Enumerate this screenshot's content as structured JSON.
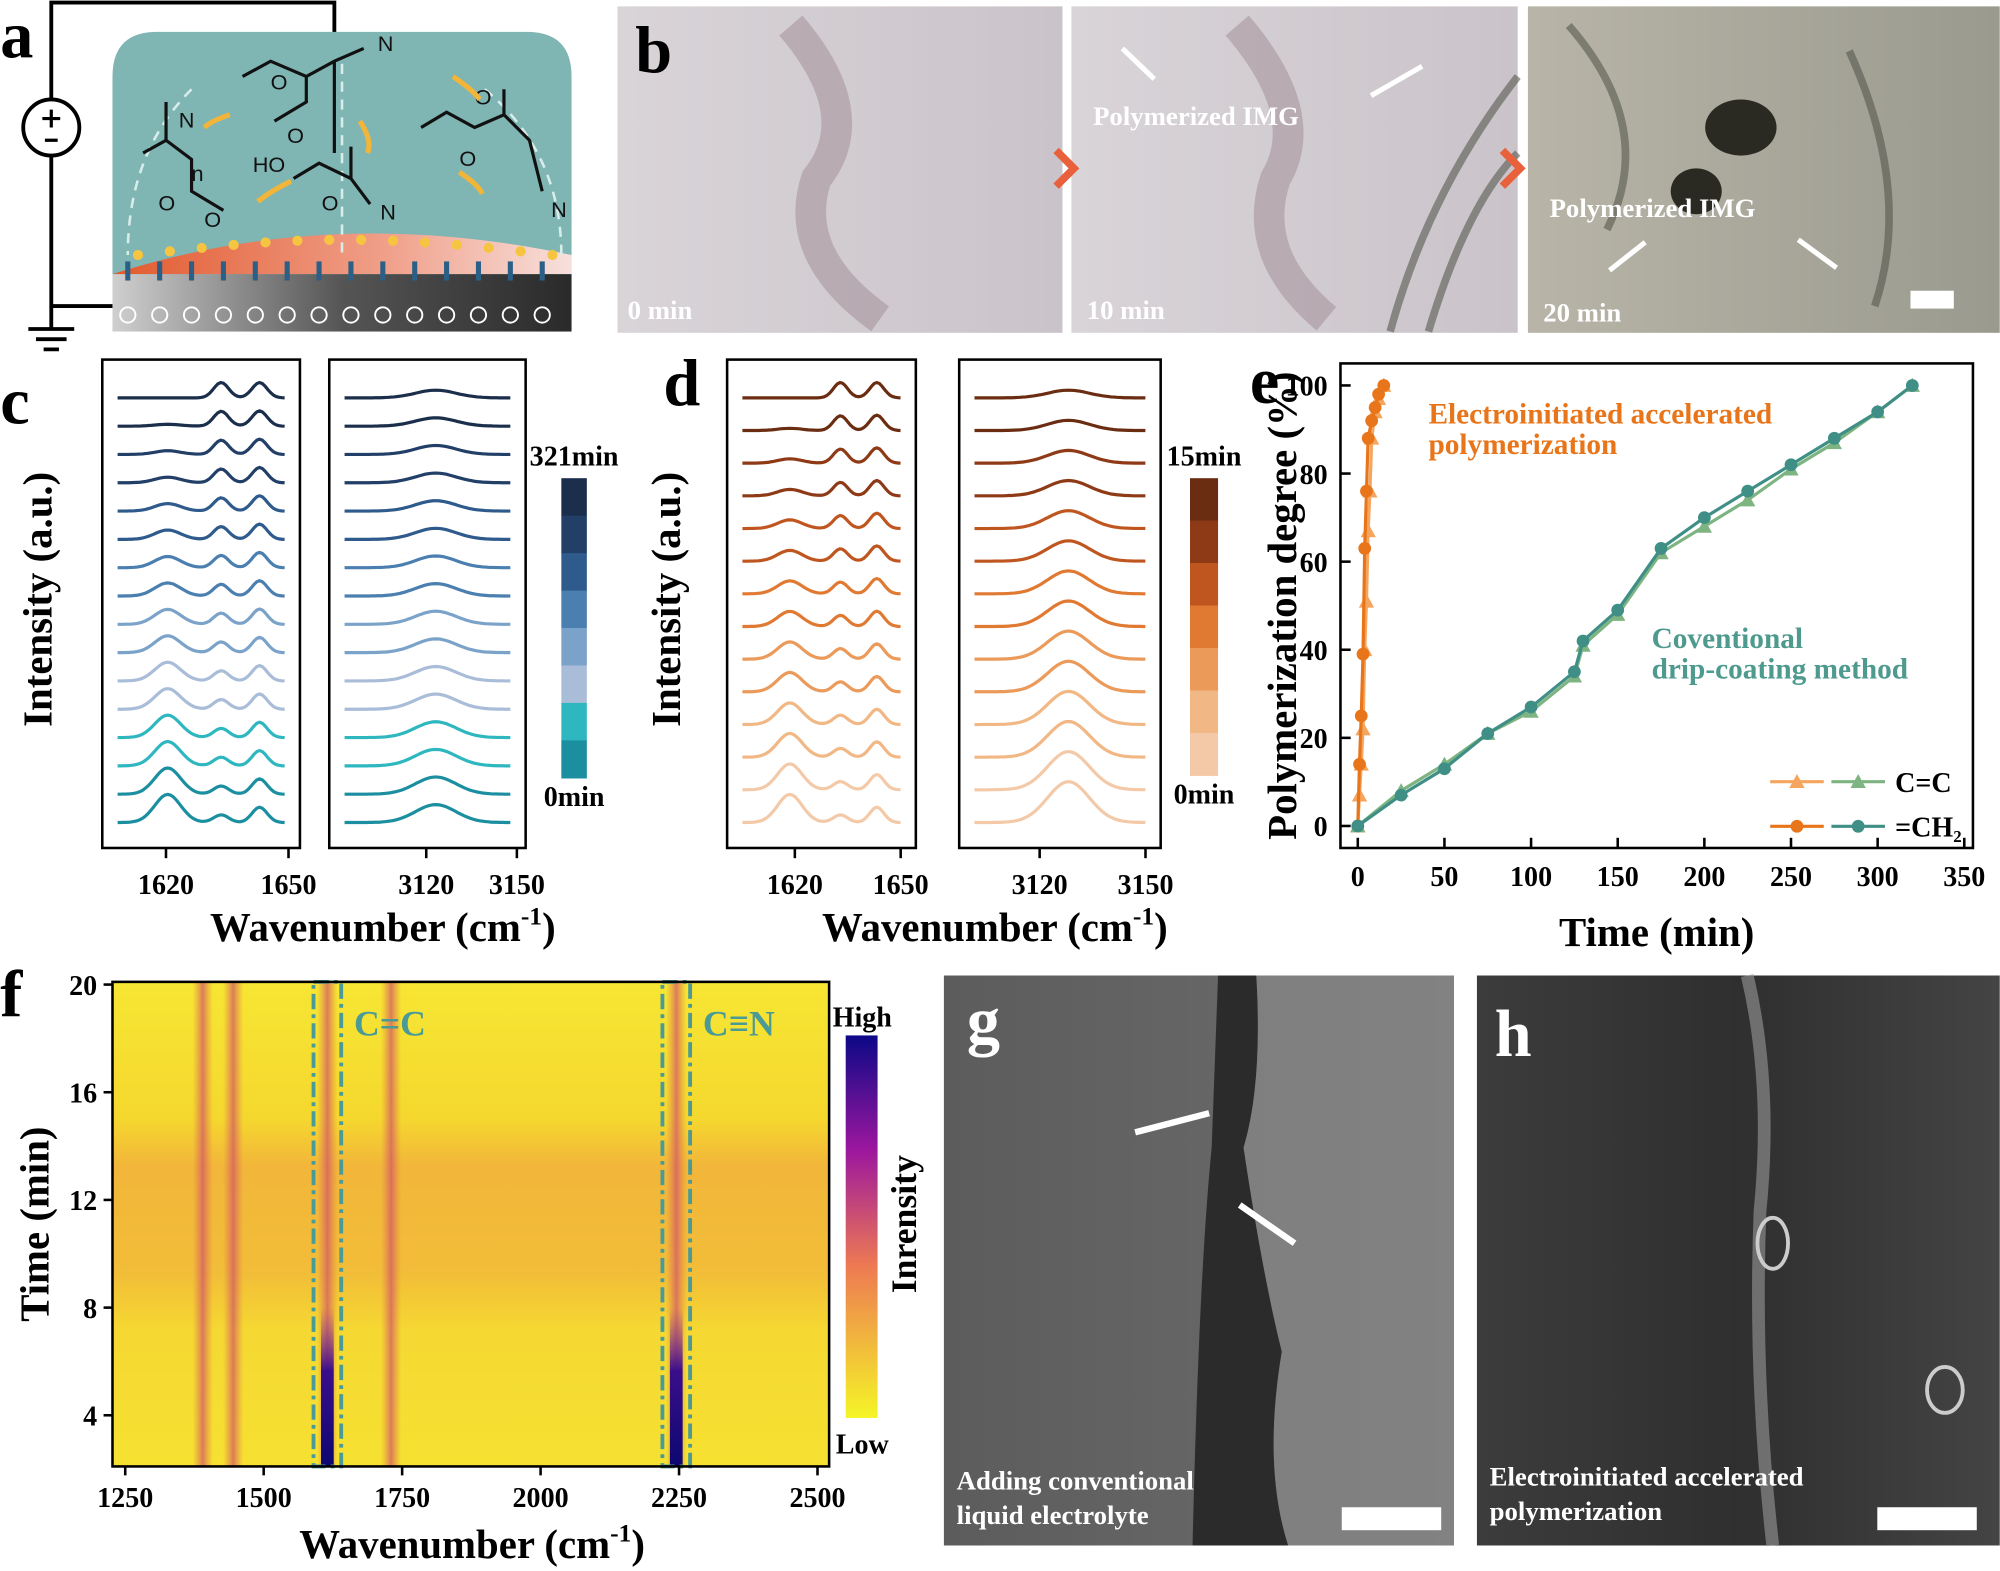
{
  "panel_labels": [
    "a",
    "b",
    "c",
    "d",
    "e",
    "f",
    "g",
    "h"
  ],
  "panel_a": {
    "atoms": [
      "O",
      "N",
      "O",
      "HO",
      "O",
      "N",
      "O",
      "O",
      "N",
      "N",
      "O",
      "O",
      "n"
    ]
  },
  "panel_b": {
    "times": [
      "0 min",
      "10 min",
      "20 min"
    ],
    "annotations": [
      "Polymerized IMG",
      "Polymerized IMG"
    ]
  },
  "chart_data": [
    {
      "type": "spectra",
      "xlabel": [
        "Wavenumber (cm",
        "-1",
        ")"
      ],
      "ylabel": "Intensity (a.u.)",
      "windows": [
        {
          "xlim": [
            1604.4,
            1652.8
          ],
          "xticks": [
            1620,
            1650
          ]
        },
        {
          "xlim": [
            3087.9,
            3152.9
          ],
          "xticks": [
            3120,
            3150
          ]
        }
      ],
      "colorbar": {
        "labels": [
          "321min",
          "0min"
        ],
        "colors": [
          "#1b2e4b",
          "#223f68",
          "#2e5a8c",
          "#4a7fb0",
          "#7ba3c9",
          "#a9bcd8",
          "#2fb7c0",
          "#1b8fa0"
        ]
      }
    },
    {
      "type": "spectra",
      "xlabel": [
        "Wavenumber (cm",
        "-1",
        ")"
      ],
      "ylabel": "Intensity (a.u.)",
      "windows": [
        {
          "xlim": [
            1600.8,
            1654.3
          ],
          "xticks": [
            1620,
            1650
          ]
        },
        {
          "xlim": [
            3097.2,
            3154.3
          ],
          "xticks": [
            3120,
            3150
          ]
        }
      ],
      "colorbar": {
        "labels": [
          "15min",
          "0min"
        ],
        "colors": [
          "#6b2d12",
          "#8f3a17",
          "#c0561f",
          "#e07a33",
          "#eb9a5a",
          "#f1b784",
          "#f3c9a8"
        ]
      }
    },
    {
      "type": "line",
      "xlabel": "Time (min)",
      "ylabel": "Polymerization degree (%)",
      "xlim": [
        -10,
        355
      ],
      "xticks": [
        0,
        50,
        100,
        150,
        200,
        250,
        300,
        350
      ],
      "ylim": [
        -5,
        105
      ],
      "yticks": [
        0,
        20,
        40,
        60,
        80,
        100
      ],
      "series": [
        {
          "name": "C=C",
          "color": "#f5a55e",
          "marker": "triangle",
          "x": [
            0,
            1,
            2,
            3,
            4,
            5,
            6,
            7,
            8,
            10,
            12,
            15
          ],
          "values": [
            0,
            7,
            14,
            22,
            40,
            51,
            67,
            76,
            88,
            94,
            97,
            100
          ]
        },
        {
          "name": "C=C",
          "color": "#7db482",
          "marker": "triangle",
          "x": [
            0,
            25,
            50,
            75,
            100,
            125,
            130,
            150,
            175,
            200,
            225,
            250,
            275,
            300,
            320
          ],
          "values": [
            0,
            8,
            14,
            21,
            26,
            34,
            41,
            48,
            62,
            68,
            74,
            81,
            87,
            94,
            100
          ]
        },
        {
          "name": "=CH₂",
          "color": "#e8751a",
          "marker": "circle",
          "x": [
            0,
            1,
            2,
            3,
            4,
            5,
            6,
            8,
            10,
            12,
            15
          ],
          "values": [
            0,
            14,
            25,
            39,
            63,
            76,
            88,
            92,
            95,
            98,
            100
          ]
        },
        {
          "name": "=CH₂",
          "color": "#3f8f86",
          "marker": "circle",
          "x": [
            0,
            25,
            50,
            75,
            100,
            125,
            130,
            150,
            175,
            200,
            225,
            250,
            275,
            300,
            320
          ],
          "values": [
            0,
            7,
            13,
            21,
            27,
            35,
            42,
            49,
            63,
            70,
            76,
            82,
            88,
            94,
            100
          ]
        }
      ],
      "annotations": [
        {
          "text": [
            "Electroinitiated accelerated",
            "polymerization"
          ],
          "color": "#e8751a"
        },
        {
          "text": [
            "Coventional",
            "drip-coating method"
          ],
          "color": "#4f9a8f"
        }
      ]
    },
    {
      "type": "heatmap",
      "xlabel": [
        "Wavenumber (cm",
        "-1",
        ")"
      ],
      "ylabel": "Time (min)",
      "xlim": [
        1227,
        2521
      ],
      "xticks": [
        1250,
        1500,
        1750,
        2000,
        2250,
        2500
      ],
      "ylim": [
        2.1,
        20.1
      ],
      "yticks": [
        4,
        8,
        12,
        16,
        20
      ],
      "peaks": [
        1390,
        1445,
        1615,
        1730,
        2245
      ],
      "highlights": [
        {
          "label": "C=C",
          "range": [
            1590,
            1640
          ]
        },
        {
          "label": "C≡N",
          "range": [
            2220,
            2270
          ]
        }
      ],
      "colorbar": {
        "title": "Inrensity",
        "labels": [
          "High",
          "Low"
        ]
      }
    }
  ],
  "panel_g": {
    "caption": [
      "Adding conventional",
      "liquid electrolyte"
    ]
  },
  "panel_h": {
    "caption": [
      "Electroinitiated accelerated",
      "polymerization"
    ]
  }
}
